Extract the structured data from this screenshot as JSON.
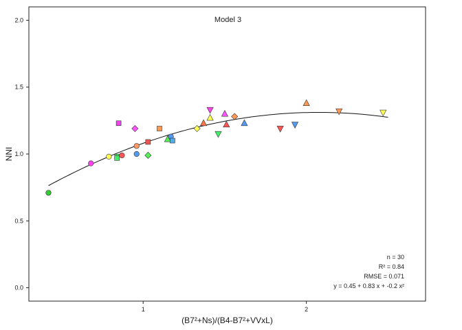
{
  "chart_data": {
    "type": "scatter",
    "title": "Model 3",
    "xlabel": "(B7²+Ns)/(B4-B7²+VVxL)",
    "ylabel": "NNI",
    "xlim": [
      0.3,
      2.73
    ],
    "ylim": [
      -0.1,
      2.1
    ],
    "xticks": [
      1,
      2
    ],
    "yticks": [
      0.0,
      0.5,
      1.0,
      1.5,
      2.0
    ],
    "x_tick_labels": [
      "1",
      "2"
    ],
    "y_tick_labels": [
      "0.0",
      "0.5",
      "1.0",
      "1.5",
      "2.0"
    ],
    "grid": false,
    "fit": {
      "intercept": 0.45,
      "b1": 0.83,
      "b2": -0.2,
      "x_range": [
        0.42,
        2.5
      ]
    },
    "stats": {
      "n": "n =  30",
      "r2": "R² =  0.84",
      "rmse": "RMSE =  0.071",
      "equation": "y =  0.45  +  0.83 x + -0.2 x²"
    },
    "points": [
      {
        "x": 0.42,
        "y": 0.71,
        "shape": "circle",
        "color": "#33cc33"
      },
      {
        "x": 0.68,
        "y": 0.93,
        "shape": "circle",
        "color": "#ff44ee"
      },
      {
        "x": 0.79,
        "y": 0.98,
        "shape": "circle",
        "color": "#ffff55"
      },
      {
        "x": 0.84,
        "y": 0.98,
        "shape": "square",
        "color": "#44ee66"
      },
      {
        "x": 0.85,
        "y": 1.23,
        "shape": "square",
        "color": "#ee44ee"
      },
      {
        "x": 0.87,
        "y": 0.99,
        "shape": "circle",
        "color": "#ff5555"
      },
      {
        "x": 0.95,
        "y": 1.19,
        "shape": "diamond",
        "color": "#ff55ff"
      },
      {
        "x": 0.96,
        "y": 1.06,
        "shape": "circle",
        "color": "#ff9966"
      },
      {
        "x": 0.96,
        "y": 1.0,
        "shape": "circle",
        "color": "#5599ee"
      },
      {
        "x": 1.03,
        "y": 0.99,
        "shape": "diamond",
        "color": "#55ee55"
      },
      {
        "x": 1.03,
        "y": 1.09,
        "shape": "square",
        "color": "#ee5555"
      },
      {
        "x": 1.1,
        "y": 1.19,
        "shape": "square",
        "color": "#ff9955"
      },
      {
        "x": 1.15,
        "y": 1.11,
        "shape": "triangle-up",
        "color": "#55ee55"
      },
      {
        "x": 1.17,
        "y": 1.13,
        "shape": "circle",
        "color": "#5599ee"
      },
      {
        "x": 1.18,
        "y": 1.1,
        "shape": "square",
        "color": "#55aaee"
      },
      {
        "x": 1.33,
        "y": 1.19,
        "shape": "diamond",
        "color": "#ffff55"
      },
      {
        "x": 1.37,
        "y": 1.23,
        "shape": "triangle-up",
        "color": "#ff7744"
      },
      {
        "x": 1.41,
        "y": 1.33,
        "shape": "triangle-down",
        "color": "#ff44ee"
      },
      {
        "x": 1.41,
        "y": 1.27,
        "shape": "triangle-up",
        "color": "#ffff55"
      },
      {
        "x": 1.46,
        "y": 1.15,
        "shape": "triangle-down",
        "color": "#44ee66"
      },
      {
        "x": 1.5,
        "y": 1.3,
        "shape": "triangle-up",
        "color": "#ff55ff"
      },
      {
        "x": 1.51,
        "y": 1.22,
        "shape": "triangle-up",
        "color": "#ff5555"
      },
      {
        "x": 1.56,
        "y": 1.28,
        "shape": "diamond",
        "color": "#ff9955"
      },
      {
        "x": 1.62,
        "y": 1.23,
        "shape": "triangle-up",
        "color": "#5599ee"
      },
      {
        "x": 1.84,
        "y": 1.19,
        "shape": "triangle-down",
        "color": "#ff5555"
      },
      {
        "x": 1.93,
        "y": 1.22,
        "shape": "triangle-down",
        "color": "#5599ee"
      },
      {
        "x": 2.0,
        "y": 1.38,
        "shape": "triangle-up",
        "color": "#ff9955"
      },
      {
        "x": 2.2,
        "y": 1.32,
        "shape": "triangle-down",
        "color": "#ff9955"
      },
      {
        "x": 2.47,
        "y": 1.31,
        "shape": "triangle-down",
        "color": "#ffff55"
      },
      {
        "x": 0.84,
        "y": 0.97,
        "shape": "square",
        "color": "#44ee66"
      }
    ]
  }
}
